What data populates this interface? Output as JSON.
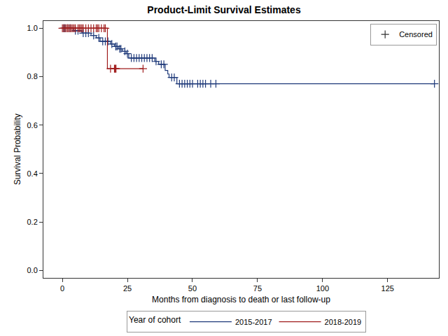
{
  "chart_data": {
    "type": "step",
    "title": "Product-Limit Survival Estimates",
    "x_label": "Months from diagnosis to death or last follow-up",
    "y_label": "Survival Probability",
    "legend": "bottom",
    "legend_title": "Year of cohort",
    "censored_label": "Censored",
    "marker": "cross",
    "xlim": [
      -7.3,
      144.7
    ],
    "xticks": [
      0,
      25,
      50,
      75,
      100,
      125
    ],
    "ylim": [
      -0.03,
      1.03
    ],
    "yticks": [
      {
        "value": 0,
        "label": "0.0"
      },
      0.2,
      0.4,
      0.6,
      0.8,
      {
        "value": 1,
        "label": "1.0"
      }
    ],
    "grid": false,
    "series": [
      {
        "name": "2015-2017",
        "color": "#1f3a7a",
        "x": [
          0,
          4.3,
          7.5,
          11,
          13,
          14.5,
          18.5,
          20,
          21.5,
          23,
          24.5,
          25.5,
          35.5,
          37,
          39.5,
          40.5,
          41,
          44,
          143
        ],
        "values": [
          1,
          0.99,
          0.98,
          0.97,
          0.96,
          0.946,
          0.935,
          0.925,
          0.915,
          0.905,
          0.895,
          0.877,
          0.863,
          0.851,
          0.826,
          0.811,
          0.797,
          0.771,
          0.771
        ],
        "censored_x": [
          0.5,
          1,
          2,
          3,
          5,
          6,
          8,
          9,
          10,
          12,
          14,
          15.5,
          16.5,
          17.5,
          19,
          20.5,
          21,
          22,
          22.5,
          24,
          25,
          26.5,
          27.5,
          28.5,
          29.5,
          30.5,
          31.5,
          32.5,
          33.5,
          34.5,
          36,
          38,
          39,
          42,
          43,
          45,
          46,
          47,
          48,
          49,
          50,
          52,
          53,
          54,
          55,
          57,
          59,
          143
        ],
        "censored_values": [
          1,
          1,
          1,
          1,
          0.99,
          0.99,
          0.98,
          0.98,
          0.98,
          0.97,
          0.96,
          0.946,
          0.946,
          0.946,
          0.935,
          0.925,
          0.925,
          0.915,
          0.915,
          0.905,
          0.895,
          0.877,
          0.877,
          0.877,
          0.877,
          0.877,
          0.877,
          0.877,
          0.877,
          0.877,
          0.863,
          0.851,
          0.851,
          0.797,
          0.797,
          0.771,
          0.771,
          0.771,
          0.771,
          0.771,
          0.771,
          0.771,
          0.771,
          0.771,
          0.771,
          0.771,
          0.771,
          0.771
        ]
      },
      {
        "name": "2018-2019",
        "color": "#a01c1c",
        "x": [
          0,
          17.3,
          31
        ],
        "values": [
          1,
          0.833,
          0.833
        ],
        "censored_x": [
          0,
          0.5,
          1,
          1.5,
          2,
          2.5,
          3,
          3.5,
          4,
          4.5,
          5,
          6,
          6.5,
          7,
          7.5,
          8,
          9,
          10,
          11,
          12,
          13,
          13.5,
          14,
          15,
          16,
          16.5,
          18.5,
          20,
          20.3,
          20.6,
          31
        ],
        "censored_values": [
          1,
          1,
          1,
          1,
          1,
          1,
          1,
          1,
          1,
          1,
          1,
          1,
          1,
          1,
          1,
          1,
          1,
          1,
          1,
          1,
          1,
          1,
          1,
          1,
          1,
          1,
          0.833,
          0.833,
          0.833,
          0.833,
          0.833
        ]
      }
    ]
  }
}
